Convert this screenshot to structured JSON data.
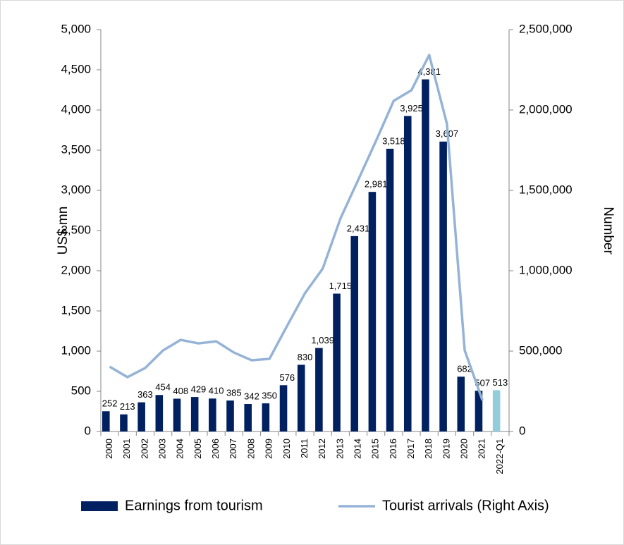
{
  "chart_data": {
    "type": "bar-line",
    "y_label": "US$ mn",
    "y2_label": "Number",
    "categories": [
      "2000",
      "2001",
      "2002",
      "2003",
      "2004",
      "2005",
      "2006",
      "2007",
      "2008",
      "2009",
      "2010",
      "2011",
      "2012",
      "2013",
      "2014",
      "2015",
      "2016",
      "2017",
      "2018",
      "2019",
      "2020",
      "2021",
      "2022-Q1"
    ],
    "series": [
      {
        "name": "Earnings from tourism",
        "type": "bar",
        "color": "#002060",
        "bar_colors": [
          "#002060",
          "#002060",
          "#002060",
          "#002060",
          "#002060",
          "#002060",
          "#002060",
          "#002060",
          "#002060",
          "#002060",
          "#002060",
          "#002060",
          "#002060",
          "#002060",
          "#002060",
          "#002060",
          "#002060",
          "#002060",
          "#002060",
          "#002060",
          "#002060",
          "#002060",
          "#92cddc"
        ],
        "values": [
          252,
          213,
          363,
          454,
          408,
          429,
          410,
          385,
          342,
          350,
          576,
          830,
          1039,
          1715,
          2431,
          2981,
          3518,
          3925,
          4381,
          3607,
          682,
          507,
          513
        ],
        "value_labels": [
          "252",
          "213",
          "363",
          "454",
          "408",
          "429",
          "410",
          "385",
          "342",
          "350",
          "576",
          "830",
          "1,039",
          "1,715",
          "2,431",
          "2,981",
          "3,518",
          "3,925",
          "4,381",
          "3,607",
          "682",
          "507",
          "513"
        ]
      },
      {
        "name": "Tourist arrivals (Right Axis)",
        "type": "line",
        "axis": "y2",
        "color": "#95b3d7",
        "values": [
          403000,
          338000,
          395000,
          504000,
          570000,
          548000,
          561000,
          491000,
          443000,
          452000,
          658000,
          860000,
          1013000,
          1325000,
          1565000,
          1807000,
          2057000,
          2123000,
          2342000,
          1913000,
          505000,
          194000,
          null
        ]
      }
    ],
    "ylim": [
      0,
      5000
    ],
    "yticks": [
      0,
      500,
      {
        "value": 1000,
        "label": "1,000"
      },
      {
        "value": 1500,
        "label": "1,500"
      },
      {
        "value": 2000,
        "label": "2,000"
      },
      {
        "value": 2500,
        "label": "2,500"
      },
      {
        "value": 3000,
        "label": "3,000"
      },
      {
        "value": 3500,
        "label": "3,500"
      },
      {
        "value": 4000,
        "label": "4,000"
      },
      {
        "value": 4500,
        "label": "4,500"
      },
      {
        "value": 5000,
        "label": "5,000"
      }
    ],
    "y2lim": [
      0,
      2500000
    ],
    "y2ticks": [
      0,
      {
        "value": 500000,
        "label": "500,000"
      },
      {
        "value": 1000000,
        "label": "1,000,000"
      },
      {
        "value": 1500000,
        "label": "1,500,000"
      },
      {
        "value": 2000000,
        "label": "2,000,000"
      },
      {
        "value": 2500000,
        "label": "2,500,000"
      }
    ],
    "legend": "bottom"
  }
}
